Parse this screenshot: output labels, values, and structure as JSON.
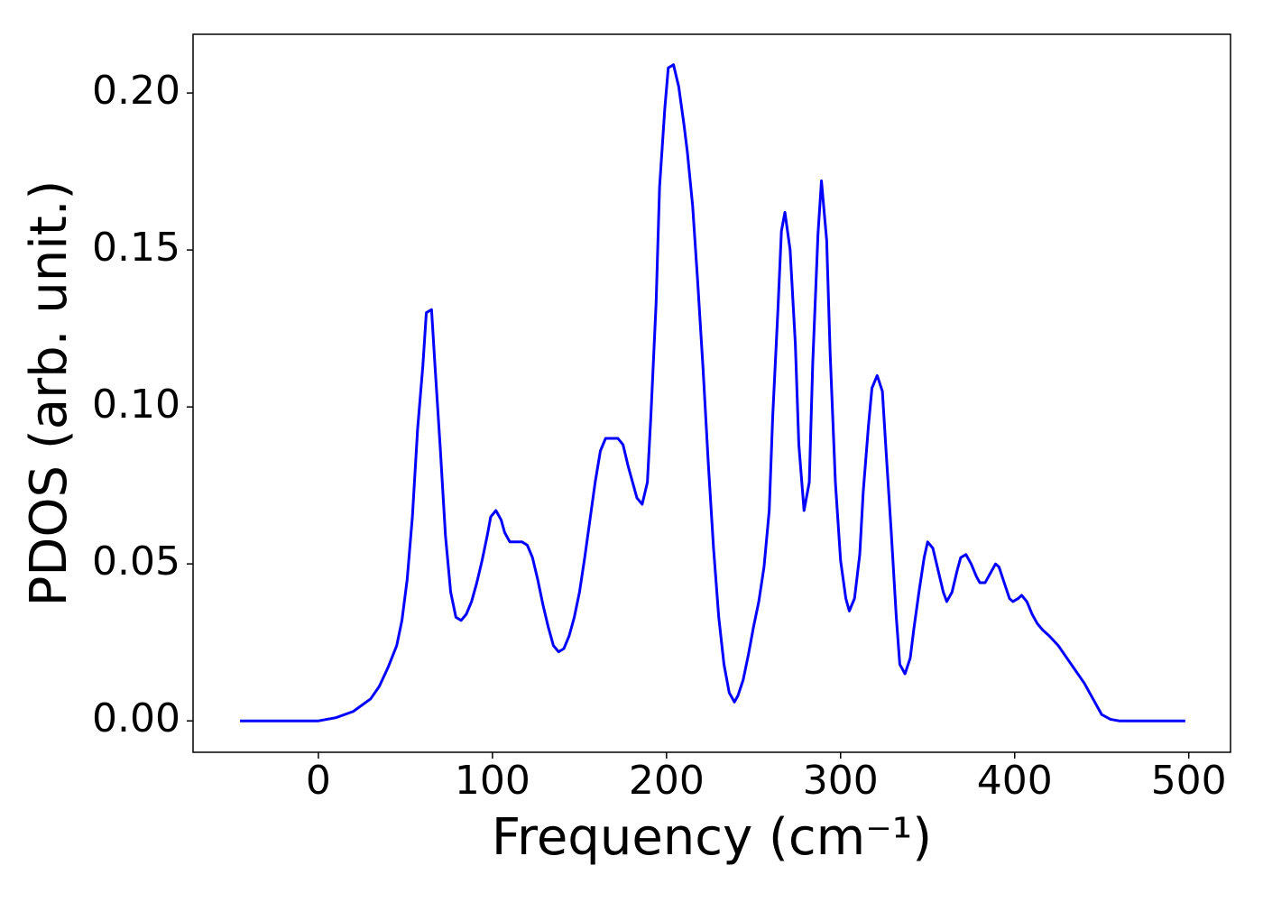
{
  "chart_data": {
    "type": "line",
    "xlabel": "Frequency (cm⁻¹)",
    "ylabel": "PDOS (arb. unit.)",
    "color": "#0000ff",
    "x": [
      -45,
      0,
      10,
      20,
      30,
      35,
      40,
      45,
      48,
      51,
      54,
      57,
      60,
      62,
      65,
      67,
      70,
      73,
      76,
      79,
      82,
      85,
      88,
      91,
      94,
      97,
      99,
      102,
      105,
      107,
      110,
      114,
      117,
      120,
      123,
      126,
      129,
      132,
      135,
      138,
      141,
      144,
      147,
      150,
      153,
      156,
      159,
      162,
      165,
      168,
      172,
      175,
      178,
      181,
      183,
      186,
      189,
      191,
      194,
      196,
      199,
      201,
      204,
      207,
      210,
      212,
      215,
      218,
      221,
      224,
      227,
      230,
      233,
      236,
      239,
      241,
      244,
      247,
      250,
      253,
      256,
      259,
      261,
      264,
      266,
      268,
      271,
      274,
      276,
      279,
      282,
      284,
      287,
      289,
      292,
      294,
      297,
      300,
      303,
      305,
      308,
      311,
      313,
      316,
      318,
      321,
      324,
      326,
      329,
      332,
      334,
      337,
      340,
      342,
      345,
      348,
      350,
      353,
      356,
      359,
      361,
      364,
      367,
      369,
      372,
      375,
      378,
      380,
      383,
      386,
      389,
      391,
      394,
      397,
      399,
      402,
      404,
      407,
      410,
      413,
      416,
      420,
      425,
      430,
      435,
      440,
      445,
      450,
      455,
      460,
      498
    ],
    "values": [
      0,
      0,
      0.001,
      0.003,
      0.007,
      0.011,
      0.017,
      0.024,
      0.032,
      0.045,
      0.065,
      0.093,
      0.113,
      0.13,
      0.131,
      0.113,
      0.087,
      0.059,
      0.041,
      0.033,
      0.032,
      0.034,
      0.038,
      0.044,
      0.051,
      0.059,
      0.065,
      0.067,
      0.064,
      0.06,
      0.057,
      0.057,
      0.057,
      0.056,
      0.052,
      0.045,
      0.037,
      0.03,
      0.024,
      0.022,
      0.023,
      0.027,
      0.033,
      0.041,
      0.052,
      0.064,
      0.076,
      0.086,
      0.09,
      0.09,
      0.09,
      0.088,
      0.081,
      0.075,
      0.071,
      0.069,
      0.076,
      0.097,
      0.133,
      0.17,
      0.195,
      0.208,
      0.209,
      0.202,
      0.19,
      0.181,
      0.164,
      0.139,
      0.112,
      0.082,
      0.055,
      0.033,
      0.018,
      0.009,
      0.006,
      0.008,
      0.013,
      0.021,
      0.03,
      0.038,
      0.049,
      0.067,
      0.097,
      0.131,
      0.156,
      0.162,
      0.15,
      0.12,
      0.088,
      0.067,
      0.076,
      0.114,
      0.155,
      0.172,
      0.153,
      0.117,
      0.076,
      0.051,
      0.039,
      0.035,
      0.039,
      0.053,
      0.073,
      0.094,
      0.106,
      0.11,
      0.105,
      0.087,
      0.061,
      0.033,
      0.018,
      0.015,
      0.02,
      0.029,
      0.041,
      0.052,
      0.057,
      0.055,
      0.048,
      0.041,
      0.038,
      0.041,
      0.048,
      0.052,
      0.053,
      0.05,
      0.046,
      0.044,
      0.044,
      0.047,
      0.05,
      0.049,
      0.044,
      0.039,
      0.038,
      0.039,
      0.04,
      0.038,
      0.034,
      0.031,
      0.029,
      0.027,
      0.024,
      0.02,
      0.016,
      0.012,
      0.007,
      0.002,
      0.0005,
      0,
      0
    ],
    "xlim": [
      -72,
      524
    ],
    "ylim": [
      -0.01,
      0.2187
    ],
    "xticks": [
      0,
      100,
      200,
      300,
      400,
      500
    ],
    "yticks": [
      {
        "value": 0,
        "label": "0.00"
      },
      {
        "value": 0.05,
        "label": "0.05"
      },
      {
        "value": 0.1,
        "label": "0.10"
      },
      {
        "value": 0.15,
        "label": "0.15"
      },
      {
        "value": 0.2,
        "label": "0.20"
      }
    ]
  }
}
